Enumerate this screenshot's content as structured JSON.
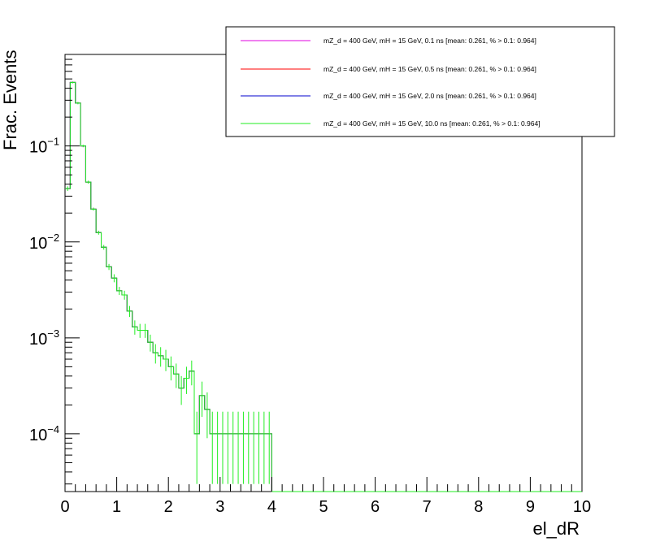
{
  "chart_data": {
    "type": "line",
    "title": "",
    "xlabel": "el_dR",
    "ylabel": "Frac. Events",
    "xlim": [
      0,
      10
    ],
    "ylim": [
      2.5e-05,
      0.9
    ],
    "yscale": "log",
    "grid": false,
    "legend_position": "top-right",
    "x_tick_labels": [
      "0",
      "1",
      "2",
      "3",
      "4",
      "5",
      "6",
      "7",
      "8",
      "9",
      "10"
    ],
    "y_tick_labels": [
      {
        "value": 0.0001,
        "base": "10",
        "exp": "−4"
      },
      {
        "value": 0.001,
        "base": "10",
        "exp": "−3"
      },
      {
        "value": 0.01,
        "base": "10",
        "exp": "−2"
      },
      {
        "value": 0.1,
        "base": "10",
        "exp": "−1"
      }
    ],
    "bin_width": 0.1,
    "series": [
      {
        "name": "mZ_d = 400 GeV, mH = 15 GeV, 0.1 ns [mean: 0.261, % > 0.1: 0.964]",
        "color": "#e000e0",
        "bin_lo": [
          0.0,
          0.1,
          0.2,
          0.3,
          0.4,
          0.5,
          0.6,
          0.7,
          0.8,
          0.9,
          1.0,
          1.1,
          1.2,
          1.3,
          1.4,
          1.5,
          1.6,
          1.7,
          1.8,
          1.9,
          2.0,
          2.1,
          2.2,
          2.3,
          2.4,
          2.5,
          2.6,
          2.7,
          2.8,
          2.9,
          3.0,
          3.1,
          3.2,
          3.3,
          3.4,
          3.5,
          3.6,
          3.7,
          3.8,
          3.9
        ],
        "values": [
          0.036,
          0.46,
          0.28,
          0.1,
          0.042,
          0.022,
          0.0125,
          0.0088,
          0.0055,
          0.0042,
          0.0031,
          0.0028,
          0.0019,
          0.0013,
          0.0012,
          0.0012,
          0.0009,
          0.0007,
          0.00065,
          0.0006,
          0.0005,
          0.00042,
          0.0003,
          0.00038,
          0.00045,
          0.0001,
          0.00025,
          0.00018,
          0.0001,
          0.0001,
          0.0001,
          0.0001,
          0.0001,
          0.0001,
          0.0001,
          0.0001,
          0.0001,
          0.0001,
          0.0001,
          0.0001
        ]
      },
      {
        "name": "mZ_d = 400 GeV, mH = 15 GeV, 0.5 ns [mean: 0.261, % > 0.1: 0.964]",
        "color": "#ff0000",
        "bin_lo": [
          0.0,
          0.1,
          0.2,
          0.3,
          0.4,
          0.5,
          0.6,
          0.7,
          0.8,
          0.9,
          1.0,
          1.1,
          1.2,
          1.3,
          1.4,
          1.5,
          1.6,
          1.7,
          1.8,
          1.9,
          2.0,
          2.1,
          2.2,
          2.3,
          2.4,
          2.5,
          2.6,
          2.7,
          2.8,
          2.9,
          3.0,
          3.1,
          3.2,
          3.3,
          3.4,
          3.5,
          3.6,
          3.7,
          3.8,
          3.9
        ],
        "values": [
          0.036,
          0.46,
          0.28,
          0.1,
          0.042,
          0.022,
          0.0125,
          0.0088,
          0.0055,
          0.0042,
          0.0031,
          0.0028,
          0.0019,
          0.0013,
          0.0012,
          0.0012,
          0.0009,
          0.0007,
          0.00065,
          0.0006,
          0.0005,
          0.00042,
          0.0003,
          0.00038,
          0.00045,
          0.0001,
          0.00025,
          0.00018,
          0.0001,
          0.0001,
          0.0001,
          0.0001,
          0.0001,
          0.0001,
          0.0001,
          0.0001,
          0.0001,
          0.0001,
          0.0001,
          0.0001
        ]
      },
      {
        "name": "mZ_d = 400 GeV, mH = 15 GeV, 2.0 ns [mean: 0.261, % > 0.1: 0.964]",
        "color": "#0000cc",
        "bin_lo": [
          0.0,
          0.1,
          0.2,
          0.3,
          0.4,
          0.5,
          0.6,
          0.7,
          0.8,
          0.9,
          1.0,
          1.1,
          1.2,
          1.3,
          1.4,
          1.5,
          1.6,
          1.7,
          1.8,
          1.9,
          2.0,
          2.1,
          2.2,
          2.3,
          2.4,
          2.5,
          2.6,
          2.7,
          2.8,
          2.9,
          3.0,
          3.1,
          3.2,
          3.3,
          3.4,
          3.5,
          3.6,
          3.7,
          3.8,
          3.9
        ],
        "values": [
          0.036,
          0.46,
          0.28,
          0.1,
          0.042,
          0.022,
          0.0125,
          0.0088,
          0.0055,
          0.0042,
          0.0031,
          0.0028,
          0.0019,
          0.0013,
          0.0012,
          0.0012,
          0.0009,
          0.0007,
          0.00065,
          0.0006,
          0.0005,
          0.00042,
          0.0003,
          0.00038,
          0.00045,
          0.0001,
          0.00025,
          0.00018,
          0.0001,
          0.0001,
          0.0001,
          0.0001,
          0.0001,
          0.0001,
          0.0001,
          0.0001,
          0.0001,
          0.0001,
          0.0001,
          0.0001
        ]
      },
      {
        "name": "mZ_d = 400 GeV, mH = 15 GeV, 10.0 ns [mean: 0.261, % > 0.1: 0.964]",
        "color": "#22ee22",
        "bin_lo": [
          0.0,
          0.1,
          0.2,
          0.3,
          0.4,
          0.5,
          0.6,
          0.7,
          0.8,
          0.9,
          1.0,
          1.1,
          1.2,
          1.3,
          1.4,
          1.5,
          1.6,
          1.7,
          1.8,
          1.9,
          2.0,
          2.1,
          2.2,
          2.3,
          2.4,
          2.5,
          2.6,
          2.7,
          2.8,
          2.9,
          3.0,
          3.1,
          3.2,
          3.3,
          3.4,
          3.5,
          3.6,
          3.7,
          3.8,
          3.9
        ],
        "values": [
          0.036,
          0.46,
          0.28,
          0.1,
          0.042,
          0.022,
          0.0125,
          0.0088,
          0.0055,
          0.0042,
          0.0031,
          0.0028,
          0.0019,
          0.0013,
          0.0012,
          0.0012,
          0.0009,
          0.0007,
          0.00065,
          0.0006,
          0.0005,
          0.00042,
          0.0003,
          0.00038,
          0.00045,
          0.0001,
          0.00025,
          0.00018,
          0.0001,
          0.0001,
          0.0001,
          0.0001,
          0.0001,
          0.0001,
          0.0001,
          0.0001,
          0.0001,
          0.0001,
          0.0001,
          0.0001
        ],
        "errors": [
          0.002,
          0.01,
          0.008,
          0.003,
          0.0015,
          0.0008,
          0.0006,
          0.0005,
          0.0004,
          0.0004,
          0.0003,
          0.0003,
          0.00025,
          0.00022,
          0.0002,
          0.0002,
          0.00018,
          0.00016,
          0.00015,
          0.00015,
          0.00014,
          0.00012,
          0.0001,
          0.00012,
          0.00013,
          7e-05,
          0.0001,
          9e-05,
          7e-05,
          7e-05,
          7e-05,
          7e-05,
          7e-05,
          7e-05,
          7e-05,
          7e-05,
          7e-05,
          7e-05,
          7e-05,
          7e-05
        ]
      }
    ]
  }
}
